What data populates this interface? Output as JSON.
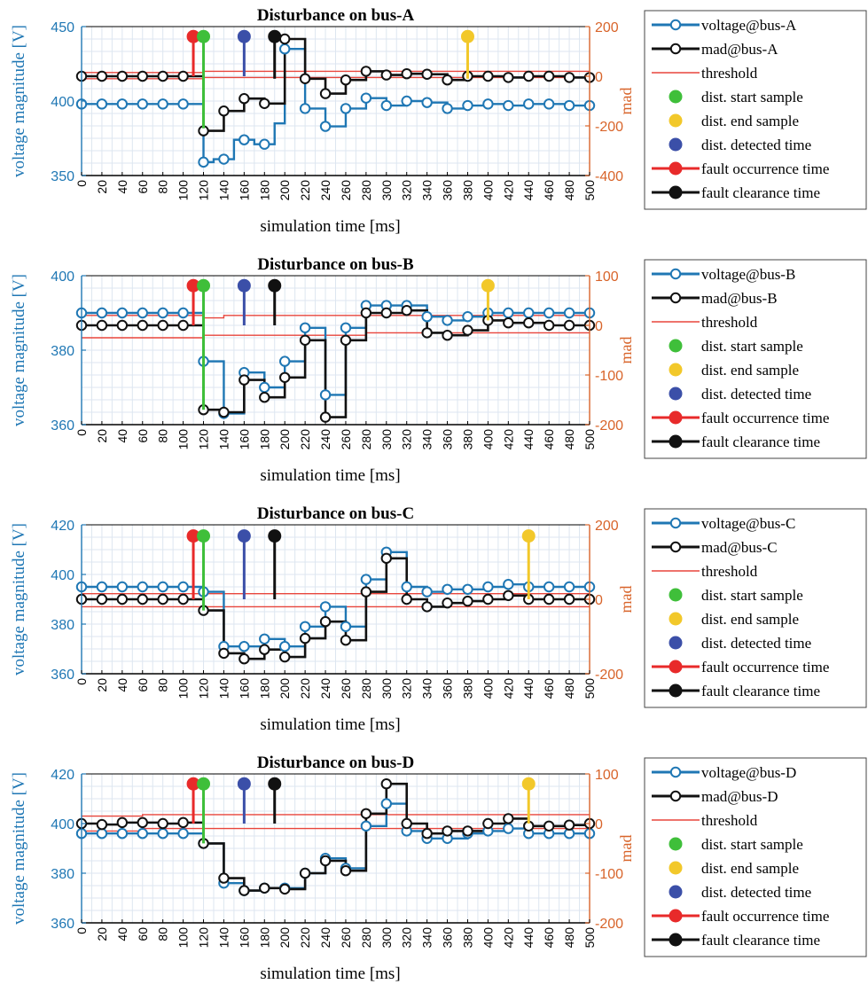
{
  "colors": {
    "voltage": "#1f77b4",
    "mad": "#111111",
    "threshold": "#e8453c",
    "dist_start": "#3fbf3a",
    "dist_end": "#f2c82a",
    "dist_detected": "#3b4fa8",
    "fault_occurrence": "#e82a2a",
    "fault_clearance": "#111111",
    "right_axis": "#d8642a",
    "grid": "#dde6f0"
  },
  "chart_data": [
    {
      "type": "line",
      "title": "Disturbance on bus-A",
      "xlabel": "simulation time [ms]",
      "ylabel_left": "voltage magnitude [V]",
      "ylabel_right": "mad",
      "xlim": [
        0,
        500
      ],
      "ylim_left": [
        350,
        450
      ],
      "ylim_right": [
        -400,
        200
      ],
      "yticks_left": [
        "350",
        "400",
        "450"
      ],
      "yticks_right": [
        "-400",
        "-200",
        "0",
        "200"
      ],
      "x": [
        0,
        10,
        20,
        30,
        40,
        50,
        60,
        70,
        80,
        90,
        100,
        110,
        120,
        130,
        140,
        150,
        160,
        170,
        180,
        190,
        200,
        210,
        220,
        230,
        240,
        250,
        260,
        270,
        280,
        290,
        300,
        310,
        320,
        330,
        340,
        350,
        360,
        370,
        380,
        390,
        400,
        410,
        420,
        430,
        440,
        450,
        460,
        470,
        480,
        490,
        500
      ],
      "voltage": [
        398,
        398,
        398,
        398,
        398,
        398,
        398,
        398,
        398,
        398,
        398,
        398,
        359,
        361,
        361,
        374,
        374,
        371,
        371,
        385,
        435,
        435,
        395,
        395,
        383,
        383,
        395,
        395,
        402,
        402,
        397,
        397,
        400,
        400,
        399,
        399,
        395,
        395,
        397,
        397,
        398,
        398,
        397,
        397,
        398,
        398,
        398,
        398,
        397,
        397,
        397
      ],
      "mad": [
        0,
        0,
        0,
        0,
        0,
        0,
        0,
        0,
        0,
        0,
        0,
        0,
        -220,
        -220,
        -140,
        -140,
        -90,
        -90,
        -110,
        -110,
        150,
        150,
        -10,
        -10,
        -70,
        -70,
        -15,
        -15,
        20,
        20,
        5,
        5,
        10,
        10,
        8,
        8,
        -15,
        -15,
        0,
        0,
        0,
        0,
        -5,
        -5,
        0,
        0,
        0,
        0,
        -5,
        -5,
        -5
      ],
      "marker_step": 2,
      "threshold_upper": [
        [
          0,
          15
        ],
        [
          120,
          15
        ],
        [
          120,
          20
        ],
        [
          500,
          20
        ]
      ],
      "threshold_lower": [
        [
          0,
          -10
        ],
        [
          120,
          -10
        ],
        [
          120,
          -5
        ],
        [
          500,
          -5
        ]
      ],
      "stems": [
        {
          "kind": "fault_occurrence",
          "x": 110,
          "y0": 0,
          "y1": 160
        },
        {
          "kind": "dist_start",
          "x": 120,
          "y0": -210,
          "y1": 160
        },
        {
          "kind": "dist_detected",
          "x": 160,
          "y0": 0,
          "y1": 160
        },
        {
          "kind": "fault_clearance",
          "x": 190,
          "y0": -10,
          "y1": 160
        },
        {
          "kind": "dist_end",
          "x": 380,
          "y0": -10,
          "y1": 160
        }
      ],
      "legend": [
        "voltage@bus-A",
        "mad@bus-A",
        "threshold",
        "dist. start sample",
        "dist. end sample",
        "dist. detected time",
        "fault occurrence time",
        "fault clearance time"
      ]
    },
    {
      "type": "line",
      "title": "Disturbance on bus-B",
      "xlabel": "simulation time [ms]",
      "ylabel_left": "voltage magnitude [V]",
      "ylabel_right": "mad",
      "xlim": [
        0,
        500
      ],
      "ylim_left": [
        360,
        400
      ],
      "ylim_right": [
        -200,
        100
      ],
      "yticks_left": [
        "360",
        "380",
        "400"
      ],
      "yticks_right": [
        "-200",
        "-100",
        "0",
        "100"
      ],
      "x": [
        0,
        10,
        20,
        30,
        40,
        50,
        60,
        70,
        80,
        90,
        100,
        110,
        120,
        130,
        140,
        150,
        160,
        170,
        180,
        190,
        200,
        210,
        220,
        230,
        240,
        250,
        260,
        270,
        280,
        290,
        300,
        310,
        320,
        330,
        340,
        350,
        360,
        370,
        380,
        390,
        400,
        410,
        420,
        430,
        440,
        450,
        460,
        470,
        480,
        490,
        500
      ],
      "voltage": [
        390,
        390,
        390,
        390,
        390,
        390,
        390,
        390,
        390,
        390,
        390,
        390,
        377,
        377,
        363,
        363,
        374,
        374,
        370,
        370,
        377,
        377,
        386,
        386,
        368,
        368,
        386,
        386,
        392,
        392,
        392,
        392,
        392,
        392,
        389,
        389,
        388,
        388,
        389,
        389,
        390,
        390,
        390,
        390,
        390,
        390,
        390,
        390,
        390,
        390,
        390
      ],
      "mad": [
        0,
        0,
        0,
        0,
        0,
        0,
        0,
        0,
        0,
        0,
        0,
        0,
        -170,
        -170,
        -175,
        -175,
        -110,
        -110,
        -145,
        -145,
        -105,
        -105,
        -30,
        -30,
        -185,
        -185,
        -30,
        -30,
        25,
        25,
        25,
        25,
        30,
        30,
        -15,
        -15,
        -20,
        -20,
        -10,
        -10,
        10,
        10,
        5,
        5,
        5,
        5,
        0,
        0,
        0,
        0,
        0
      ],
      "marker_step": 2,
      "threshold_upper": [
        [
          0,
          20
        ],
        [
          120,
          20
        ],
        [
          120,
          15
        ],
        [
          140,
          15
        ],
        [
          140,
          20
        ],
        [
          500,
          20
        ]
      ],
      "threshold_lower": [
        [
          0,
          -25
        ],
        [
          120,
          -25
        ],
        [
          120,
          -20
        ],
        [
          280,
          -20
        ],
        [
          280,
          -15
        ],
        [
          500,
          -15
        ]
      ],
      "stems": [
        {
          "kind": "fault_occurrence",
          "x": 110,
          "y0": 0,
          "y1": 80
        },
        {
          "kind": "dist_start",
          "x": 120,
          "y0": -170,
          "y1": 80
        },
        {
          "kind": "dist_detected",
          "x": 160,
          "y0": 0,
          "y1": 80
        },
        {
          "kind": "fault_clearance",
          "x": 190,
          "y0": 0,
          "y1": 80
        },
        {
          "kind": "dist_end",
          "x": 400,
          "y0": 10,
          "y1": 80
        }
      ],
      "legend": [
        "voltage@bus-B",
        "mad@bus-B",
        "threshold",
        "dist. start sample",
        "dist. end sample",
        "dist. detected time",
        "fault occurrence time",
        "fault clearance time"
      ]
    },
    {
      "type": "line",
      "title": "Disturbance on bus-C",
      "xlabel": "simulation time [ms]",
      "ylabel_left": "voltage magnitude [V]",
      "ylabel_right": "mad",
      "xlim": [
        0,
        500
      ],
      "ylim_left": [
        360,
        420
      ],
      "ylim_right": [
        -200,
        200
      ],
      "yticks_left": [
        "360",
        "380",
        "400",
        "420"
      ],
      "yticks_right": [
        "-200",
        "0",
        "200"
      ],
      "x": [
        0,
        10,
        20,
        30,
        40,
        50,
        60,
        70,
        80,
        90,
        100,
        110,
        120,
        130,
        140,
        150,
        160,
        170,
        180,
        190,
        200,
        210,
        220,
        230,
        240,
        250,
        260,
        270,
        280,
        290,
        300,
        310,
        320,
        330,
        340,
        350,
        360,
        370,
        380,
        390,
        400,
        410,
        420,
        430,
        440,
        450,
        460,
        470,
        480,
        490,
        500
      ],
      "voltage": [
        395,
        395,
        395,
        395,
        395,
        395,
        395,
        395,
        395,
        395,
        395,
        395,
        393,
        393,
        371,
        371,
        371,
        371,
        374,
        374,
        371,
        371,
        379,
        379,
        387,
        387,
        379,
        379,
        398,
        398,
        409,
        409,
        395,
        395,
        393,
        393,
        394,
        394,
        394,
        394,
        395,
        395,
        396,
        396,
        395,
        395,
        395,
        395,
        395,
        395,
        395
      ],
      "mad": [
        0,
        0,
        0,
        0,
        0,
        0,
        0,
        0,
        0,
        0,
        0,
        0,
        -30,
        -30,
        -145,
        -145,
        -160,
        -160,
        -135,
        -135,
        -155,
        -155,
        -105,
        -105,
        -60,
        -60,
        -110,
        -110,
        20,
        20,
        110,
        110,
        0,
        0,
        -20,
        -20,
        -10,
        -10,
        -5,
        -5,
        0,
        0,
        10,
        10,
        0,
        0,
        0,
        0,
        0,
        0,
        0
      ],
      "marker_step": 2,
      "threshold_upper": [
        [
          0,
          15
        ],
        [
          500,
          15
        ]
      ],
      "threshold_lower": [
        [
          0,
          -20
        ],
        [
          500,
          -20
        ]
      ],
      "stems": [
        {
          "kind": "fault_occurrence",
          "x": 110,
          "y0": 0,
          "y1": 170
        },
        {
          "kind": "dist_start",
          "x": 120,
          "y0": -30,
          "y1": 170
        },
        {
          "kind": "dist_detected",
          "x": 160,
          "y0": 0,
          "y1": 170
        },
        {
          "kind": "fault_clearance",
          "x": 190,
          "y0": 0,
          "y1": 170
        },
        {
          "kind": "dist_end",
          "x": 440,
          "y0": 0,
          "y1": 170
        }
      ],
      "legend": [
        "voltage@bus-C",
        "mad@bus-C",
        "threshold",
        "dist. start sample",
        "dist. end sample",
        "dist. detected time",
        "fault occurrence time",
        "fault clearance time"
      ]
    },
    {
      "type": "line",
      "title": "Disturbance on bus-D",
      "xlabel": "simulation time [ms]",
      "ylabel_left": "voltage magnitude [V]",
      "ylabel_right": "mad",
      "xlim": [
        0,
        500
      ],
      "ylim_left": [
        360,
        420
      ],
      "ylim_right": [
        -200,
        100
      ],
      "yticks_left": [
        "360",
        "380",
        "400",
        "420"
      ],
      "yticks_right": [
        "-200",
        "-100",
        "0",
        "100"
      ],
      "x": [
        0,
        10,
        20,
        30,
        40,
        50,
        60,
        70,
        80,
        90,
        100,
        110,
        120,
        130,
        140,
        150,
        160,
        170,
        180,
        190,
        200,
        210,
        220,
        230,
        240,
        250,
        260,
        270,
        280,
        290,
        300,
        310,
        320,
        330,
        340,
        350,
        360,
        370,
        380,
        390,
        400,
        410,
        420,
        430,
        440,
        450,
        460,
        470,
        480,
        490,
        500
      ],
      "voltage": [
        396,
        396,
        396,
        396,
        396,
        396,
        396,
        396,
        396,
        396,
        396,
        396,
        392,
        392,
        376,
        376,
        373,
        373,
        374,
        374,
        374,
        374,
        380,
        380,
        386,
        386,
        382,
        382,
        399,
        399,
        408,
        408,
        397,
        397,
        394,
        394,
        394,
        394,
        396,
        396,
        397,
        397,
        398,
        398,
        396,
        396,
        396,
        396,
        396,
        396,
        396
      ],
      "mad": [
        0,
        0,
        -2,
        -2,
        2,
        2,
        2,
        2,
        0,
        0,
        2,
        2,
        -40,
        -40,
        -110,
        -110,
        -135,
        -135,
        -130,
        -130,
        -132,
        -132,
        -100,
        -100,
        -75,
        -75,
        -95,
        -95,
        20,
        20,
        80,
        80,
        0,
        0,
        -20,
        -20,
        -15,
        -15,
        -15,
        -15,
        0,
        0,
        10,
        10,
        -5,
        -5,
        -5,
        -5,
        -3,
        -3,
        0
      ],
      "marker_step": 2,
      "threshold_upper": [
        [
          0,
          15
        ],
        [
          60,
          15
        ],
        [
          60,
          18
        ],
        [
          500,
          18
        ]
      ],
      "threshold_lower": [
        [
          0,
          -15
        ],
        [
          60,
          -15
        ],
        [
          60,
          -10
        ],
        [
          500,
          -10
        ]
      ],
      "stems": [
        {
          "kind": "fault_occurrence",
          "x": 110,
          "y0": 0,
          "y1": 80
        },
        {
          "kind": "dist_start",
          "x": 120,
          "y0": -40,
          "y1": 80
        },
        {
          "kind": "dist_detected",
          "x": 160,
          "y0": 0,
          "y1": 80
        },
        {
          "kind": "fault_clearance",
          "x": 190,
          "y0": 0,
          "y1": 80
        },
        {
          "kind": "dist_end",
          "x": 440,
          "y0": 0,
          "y1": 80
        }
      ],
      "legend": [
        "voltage@bus-D",
        "mad@bus-D",
        "threshold",
        "dist. start sample",
        "dist. end sample",
        "dist. detected time",
        "fault occurrence time",
        "fault clearance time"
      ]
    }
  ]
}
